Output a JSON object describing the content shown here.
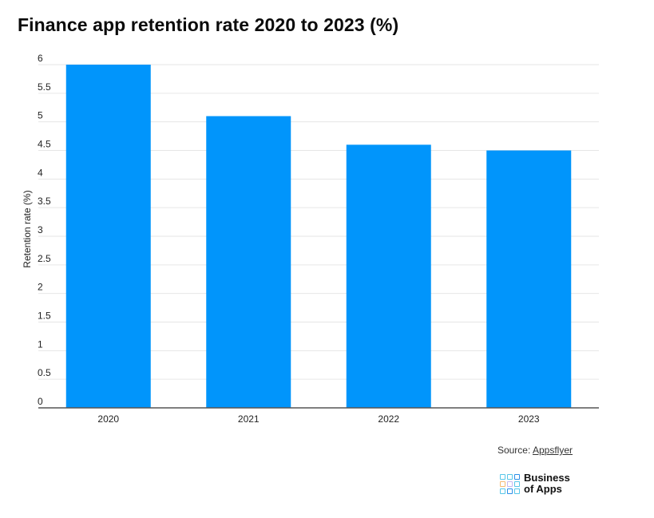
{
  "title": "Finance app retention rate 2020 to 2023 (%)",
  "chart_data": {
    "type": "bar",
    "categories": [
      "2020",
      "2021",
      "2022",
      "2023"
    ],
    "values": [
      6.0,
      5.1,
      4.6,
      4.5
    ],
    "ylabel": "Retention rate (%)",
    "xlabel": "",
    "ylim": [
      0,
      6
    ],
    "yticks": [
      "0",
      "0.5",
      "1",
      "1.5",
      "2",
      "2.5",
      "3",
      "3.5",
      "4",
      "4.5",
      "5",
      "5.5",
      "6"
    ],
    "grid": true,
    "bar_color": "#0195fb",
    "gridline_color": "#e6e6e6",
    "axis_color": "#555555"
  },
  "source": {
    "label": "Source: ",
    "link_text": "Appsflyer"
  },
  "brand": {
    "line1": "Business",
    "line2": "of Apps",
    "tile_colors": [
      "#57c6e8",
      "#57c6e8",
      "#2b8fe8",
      "#f5b971",
      "#c6b6f0",
      "#57c6e8",
      "#57c6e8",
      "#2b8fe8",
      "#57c6e8"
    ]
  }
}
